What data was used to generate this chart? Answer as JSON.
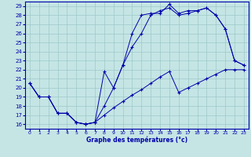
{
  "xlabel": "Graphe des températures (°c)",
  "bg_color": "#c5e5e5",
  "grid_color": "#9dc8c8",
  "line_color": "#0000aa",
  "xlim": [
    -0.5,
    23.5
  ],
  "ylim": [
    15.5,
    29.5
  ],
  "xticks": [
    0,
    1,
    2,
    3,
    4,
    5,
    6,
    7,
    8,
    9,
    10,
    11,
    12,
    13,
    14,
    15,
    16,
    17,
    18,
    19,
    20,
    21,
    22,
    23
  ],
  "yticks": [
    16,
    17,
    18,
    19,
    20,
    21,
    22,
    23,
    24,
    25,
    26,
    27,
    28,
    29
  ],
  "series": [
    [
      20.5,
      19.0,
      19.0,
      17.2,
      17.2,
      16.2,
      16.0,
      16.2,
      18.0,
      20.0,
      22.5,
      26.0,
      28.0,
      28.2,
      28.2,
      29.2,
      28.2,
      28.5,
      28.5,
      28.8,
      28.0,
      26.5,
      23.0,
      22.5
    ],
    [
      20.5,
      19.0,
      19.0,
      17.2,
      17.2,
      16.2,
      16.0,
      16.2,
      21.8,
      20.0,
      22.5,
      24.5,
      26.0,
      28.0,
      28.5,
      28.8,
      28.0,
      28.2,
      28.5,
      28.8,
      28.0,
      26.5,
      23.0,
      22.5
    ],
    [
      20.5,
      19.0,
      19.0,
      17.2,
      17.2,
      16.2,
      16.0,
      16.2,
      17.0,
      17.8,
      18.5,
      19.2,
      19.8,
      20.5,
      21.2,
      21.8,
      19.5,
      20.0,
      20.5,
      21.0,
      21.5,
      22.0,
      22.0,
      22.0
    ]
  ]
}
